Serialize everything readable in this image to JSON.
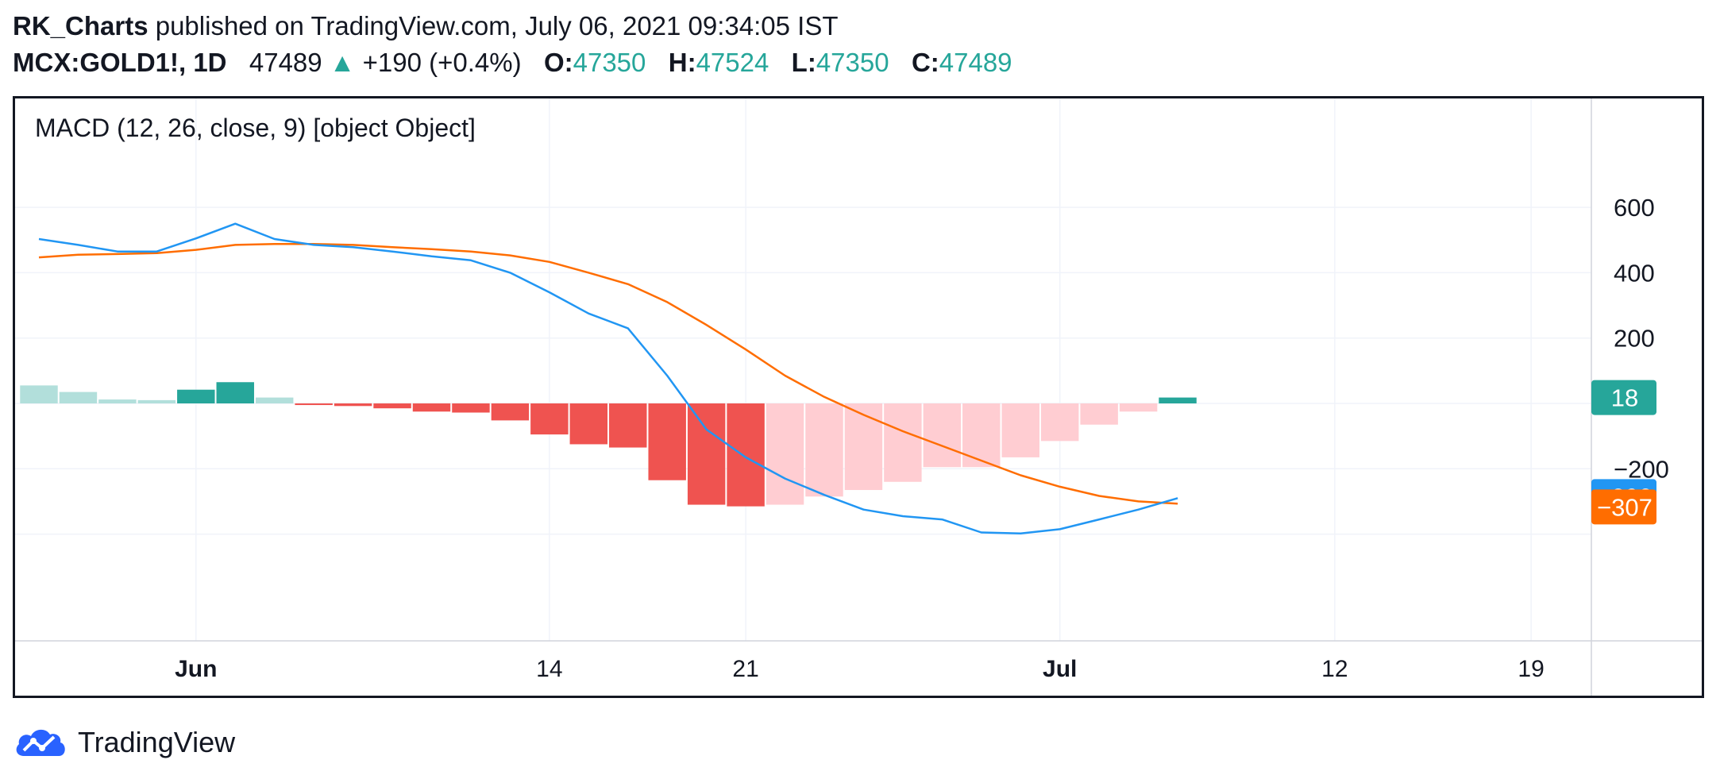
{
  "header": {
    "author": "RK_Charts",
    "published_text": "published on TradingView.com, July 06, 2021 09:34:05 IST",
    "symbol": "MCX:GOLD1!, 1D",
    "last": "47489",
    "change": "+190 (+0.4%)",
    "o_label": "O:",
    "o_value": "47350",
    "h_label": "H:",
    "h_value": "47524",
    "l_label": "L:",
    "l_value": "47350",
    "c_label": "C:",
    "c_value": "47489",
    "up_color": "#26a69a"
  },
  "footer": {
    "brand": "TradingView"
  },
  "chart_data": {
    "type": "line",
    "title": "MACD (12, 26, close, 9) [object Object]",
    "ylim": [
      -520,
      650
    ],
    "y_ticks": [
      600,
      400,
      200,
      -200
    ],
    "y_tick_labels": [
      "600",
      "400",
      "200",
      "−200"
    ],
    "x_ticks": [
      {
        "label": "Jun",
        "i": 4,
        "bold": true
      },
      {
        "label": "14",
        "i": 13,
        "bold": false
      },
      {
        "label": "21",
        "i": 18,
        "bold": false
      },
      {
        "label": "Jul",
        "i": 26,
        "bold": true
      },
      {
        "label": "12",
        "i": 33,
        "bold": false
      },
      {
        "label": "19",
        "i": 38,
        "bold": false
      }
    ],
    "histogram": {
      "name": "Histogram",
      "values": [
        55,
        35,
        12,
        10,
        42,
        65,
        18,
        -5,
        -8,
        -15,
        -25,
        -28,
        -52,
        -95,
        -125,
        -135,
        -235,
        -310,
        -315,
        -310,
        -285,
        -265,
        -240,
        -195,
        -195,
        -165,
        -115,
        -65,
        -25,
        18
      ],
      "colors": [
        "#b2dfdb",
        "#b2dfdb",
        "#b2dfdb",
        "#b2dfdb",
        "#26a69a",
        "#26a69a",
        "#b2dfdb",
        "#ef5350",
        "#ef5350",
        "#ef5350",
        "#ef5350",
        "#ef5350",
        "#ef5350",
        "#ef5350",
        "#ef5350",
        "#ef5350",
        "#ef5350",
        "#ef5350",
        "#ef5350",
        "#ffcdd2",
        "#ffcdd2",
        "#ffcdd2",
        "#ffcdd2",
        "#ffcdd2",
        "#ffcdd2",
        "#ffcdd2",
        "#ffcdd2",
        "#ffcdd2",
        "#ffcdd2",
        "#26a69a"
      ]
    },
    "series": [
      {
        "name": "MACD",
        "color": "#2196f3",
        "values": [
          503,
          485,
          465,
          465,
          505,
          550,
          503,
          485,
          478,
          465,
          450,
          438,
          400,
          340,
          275,
          230,
          85,
          -80,
          -165,
          -230,
          -280,
          -325,
          -345,
          -355,
          -395,
          -398,
          -385,
          -355,
          -325,
          -290
        ]
      },
      {
        "name": "Signal",
        "color": "#ff6d00",
        "values": [
          447,
          455,
          457,
          460,
          470,
          485,
          488,
          488,
          485,
          478,
          472,
          465,
          453,
          433,
          400,
          365,
          310,
          240,
          165,
          85,
          20,
          -35,
          -85,
          -130,
          -175,
          -220,
          -255,
          -283,
          -300,
          -307
        ]
      }
    ],
    "last_value_labels": [
      {
        "text": "18",
        "value": 18,
        "color": "#26a69a"
      },
      {
        "text": "−290",
        "value": -290,
        "color": "#2196f3"
      },
      {
        "text": "−307",
        "value": -307,
        "color": "#ff6d00"
      }
    ]
  }
}
